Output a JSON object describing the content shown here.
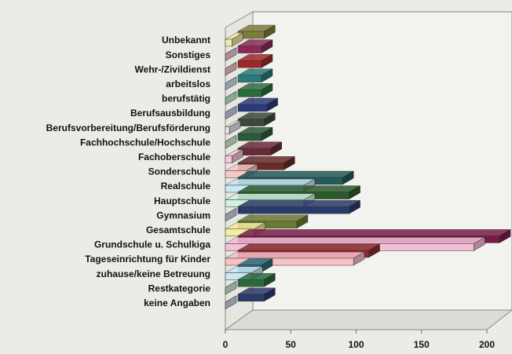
{
  "chart_data": {
    "type": "bar3d",
    "categories": [
      "Unbekannt",
      "Sonstiges",
      "Wehr-/Zivildienst",
      "arbeitslos",
      "berufstätig",
      "Berufsausbildung",
      "Berufsvorbereitung/Berufsförderung",
      "Fachhochschule/Hochschule",
      "Fachoberschule",
      "Sonderschule",
      "Realschule",
      "Hauptschule",
      "Gymnasium",
      "Gesamtschule",
      "Grundschule u. Schulkiga",
      "Tageseinrichtung für Kinder",
      "zuhause/keine Betreuung",
      "Restkategorie",
      "keine Angaben"
    ],
    "series": [
      {
        "colors": [
          "#7d7d3a",
          "#8b2a55",
          "#a02828",
          "#2a7a7a",
          "#2a6e3a",
          "#2a3a7a",
          "#3a4a3a",
          "#2a5a3a",
          "#6a2a3a",
          "#6a2a2a",
          "#235a5a",
          "#2a5a2a",
          "#2a3a6a",
          "#6a7a30",
          "#7a1a4a",
          "#8a2a2a",
          "#2a6a7a",
          "#2a6a3a",
          "#2a3a6a"
        ],
        "values": [
          20,
          18,
          18,
          18,
          18,
          22,
          20,
          18,
          25,
          35,
          80,
          85,
          85,
          45,
          200,
          100,
          18,
          20,
          20
        ]
      },
      {
        "colors": [
          "#f3e9a8",
          "#f5c8d8",
          "#f5c8c8",
          "#c8e8f0",
          "#c8f0d0",
          "#c8d0f0",
          "#e8e8e8",
          "#d8f0d8",
          "#f5c8d8",
          "#f8c8c8",
          "#c8e8f5",
          "#d0f0e0",
          "#d0d8f0",
          "#f5eca0",
          "#f4c0d8",
          "#f8c0c8",
          "#c8e8f5",
          "#c8f0d8",
          "#d0d8f0"
        ],
        "values": [
          5,
          0,
          0,
          0,
          0,
          0,
          3,
          0,
          5,
          16,
          60,
          60,
          0,
          22,
          190,
          98,
          20,
          0,
          0
        ]
      }
    ],
    "xlim": [
      0,
      200
    ],
    "xticks": [
      0,
      50,
      100,
      150,
      200
    ]
  }
}
